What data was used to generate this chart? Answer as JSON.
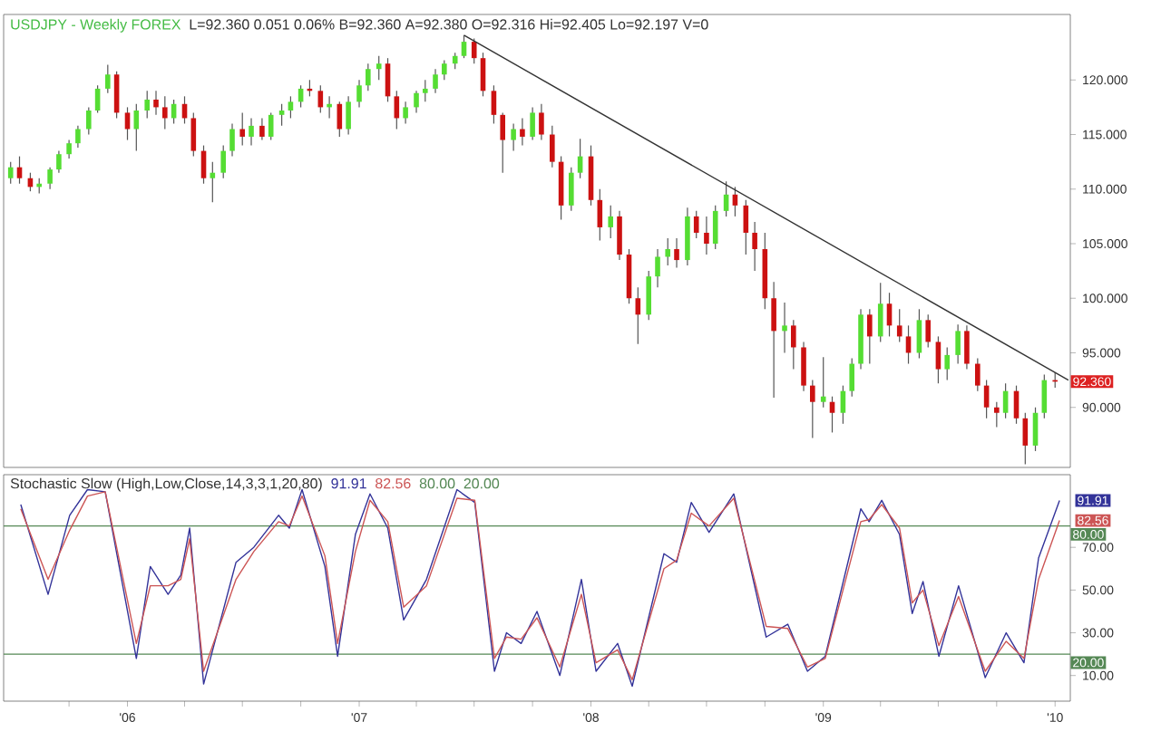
{
  "chart_data": [
    {
      "type": "candlestick",
      "title": "USDJPY - Weekly  FOREX",
      "subtitle": "L=92.360  0.051  0.06%  B=92.360  A=92.380  O=92.316  Hi=92.405  Lo=92.197  V=0",
      "x": [
        "2005-07-01",
        "2005-07-15",
        "2005-08-01",
        "2005-08-15",
        "2005-09-01",
        "2005-09-15",
        "2005-10-01",
        "2005-10-15",
        "2005-11-01",
        "2005-11-15",
        "2005-12-01",
        "2005-12-15",
        "2006-01-01",
        "2006-01-15",
        "2006-02-01",
        "2006-02-15",
        "2006-03-01",
        "2006-03-15",
        "2006-04-01",
        "2006-04-15",
        "2006-05-01",
        "2006-05-15",
        "2006-06-01",
        "2006-06-15",
        "2006-07-01",
        "2006-07-15",
        "2006-08-01",
        "2006-08-15",
        "2006-09-01",
        "2006-09-15",
        "2006-10-01",
        "2006-10-15",
        "2006-11-01",
        "2006-11-15",
        "2006-12-01",
        "2006-12-15",
        "2007-01-01",
        "2007-01-15",
        "2007-02-01",
        "2007-02-15",
        "2007-03-01",
        "2007-03-15",
        "2007-04-01",
        "2007-04-15",
        "2007-05-01",
        "2007-05-15",
        "2007-06-01",
        "2007-06-15",
        "2007-07-01",
        "2007-07-15",
        "2007-08-01",
        "2007-08-15",
        "2007-09-01",
        "2007-09-15",
        "2007-10-01",
        "2007-10-15",
        "2007-11-01",
        "2007-11-15",
        "2007-12-01",
        "2007-12-15",
        "2008-01-01",
        "2008-01-15",
        "2008-02-01",
        "2008-02-15",
        "2008-03-01",
        "2008-03-15",
        "2008-04-01",
        "2008-04-15",
        "2008-05-01",
        "2008-05-15",
        "2008-06-01",
        "2008-06-15",
        "2008-07-01",
        "2008-07-15",
        "2008-08-01",
        "2008-08-15",
        "2008-09-01",
        "2008-09-15",
        "2008-10-01",
        "2008-10-15",
        "2008-11-01",
        "2008-11-15",
        "2008-12-01",
        "2008-12-15",
        "2009-01-01",
        "2009-01-15",
        "2009-02-01",
        "2009-02-15",
        "2009-03-01",
        "2009-03-15",
        "2009-04-01",
        "2009-04-15",
        "2009-05-01",
        "2009-05-15",
        "2009-06-01",
        "2009-06-15",
        "2009-07-01",
        "2009-07-15",
        "2009-08-01",
        "2009-08-15",
        "2009-09-01",
        "2009-09-15",
        "2009-10-01",
        "2009-10-15",
        "2009-11-01",
        "2009-11-15",
        "2009-12-01",
        "2009-12-15",
        "2010-01-01"
      ],
      "ohlc": [
        [
          111.0,
          112.5,
          110.5,
          112.0
        ],
        [
          112.0,
          113.0,
          110.5,
          111.0
        ],
        [
          111.0,
          111.5,
          109.8,
          110.2
        ],
        [
          110.2,
          111.0,
          109.6,
          110.5
        ],
        [
          110.5,
          112.0,
          110.0,
          111.8
        ],
        [
          111.8,
          113.5,
          111.5,
          113.2
        ],
        [
          113.2,
          114.5,
          112.8,
          114.2
        ],
        [
          114.2,
          115.8,
          113.8,
          115.5
        ],
        [
          115.5,
          117.5,
          115.0,
          117.2
        ],
        [
          117.2,
          119.5,
          117.0,
          119.2
        ],
        [
          119.2,
          121.4,
          118.8,
          120.5
        ],
        [
          120.5,
          120.8,
          116.5,
          117.0
        ],
        [
          117.0,
          117.5,
          114.5,
          115.5
        ],
        [
          115.5,
          117.8,
          113.5,
          117.2
        ],
        [
          117.2,
          119.0,
          116.5,
          118.2
        ],
        [
          118.2,
          119.0,
          116.8,
          117.5
        ],
        [
          117.5,
          118.5,
          115.5,
          116.5
        ],
        [
          116.5,
          118.2,
          116.0,
          117.8
        ],
        [
          117.8,
          118.5,
          116.0,
          116.5
        ],
        [
          116.5,
          117.0,
          113.0,
          113.5
        ],
        [
          113.5,
          114.0,
          110.5,
          111.0
        ],
        [
          111.0,
          112.5,
          108.8,
          111.5
        ],
        [
          111.5,
          114.0,
          111.0,
          113.5
        ],
        [
          113.5,
          116.0,
          113.0,
          115.5
        ],
        [
          115.5,
          117.0,
          114.0,
          114.8
        ],
        [
          114.8,
          116.5,
          114.0,
          115.8
        ],
        [
          115.8,
          116.5,
          114.5,
          114.8
        ],
        [
          114.8,
          117.0,
          114.5,
          116.8
        ],
        [
          116.8,
          117.8,
          115.8,
          117.2
        ],
        [
          117.2,
          118.5,
          116.5,
          118.0
        ],
        [
          118.0,
          119.5,
          117.5,
          119.2
        ],
        [
          119.2,
          120.0,
          118.5,
          119.0
        ],
        [
          119.0,
          119.5,
          117.0,
          117.5
        ],
        [
          117.5,
          118.5,
          116.5,
          117.8
        ],
        [
          117.8,
          118.0,
          114.8,
          115.5
        ],
        [
          115.5,
          118.5,
          115.0,
          118.0
        ],
        [
          118.0,
          120.0,
          117.5,
          119.5
        ],
        [
          119.5,
          121.5,
          119.0,
          121.0
        ],
        [
          121.0,
          122.2,
          120.0,
          121.5
        ],
        [
          121.5,
          122.0,
          118.0,
          118.5
        ],
        [
          118.5,
          119.0,
          115.5,
          116.5
        ],
        [
          116.5,
          118.0,
          116.0,
          117.5
        ],
        [
          117.5,
          119.0,
          117.0,
          118.8
        ],
        [
          118.8,
          120.0,
          118.0,
          119.2
        ],
        [
          119.2,
          121.0,
          118.8,
          120.5
        ],
        [
          120.5,
          121.8,
          120.0,
          121.5
        ],
        [
          121.5,
          122.5,
          121.0,
          122.2
        ],
        [
          122.2,
          124.1,
          122.0,
          123.5
        ],
        [
          123.5,
          123.8,
          121.5,
          122.0
        ],
        [
          122.0,
          122.5,
          118.5,
          119.0
        ],
        [
          119.0,
          119.5,
          116.0,
          116.8
        ],
        [
          116.8,
          117.0,
          111.5,
          114.5
        ],
        [
          114.5,
          116.0,
          113.5,
          115.5
        ],
        [
          115.5,
          116.5,
          114.0,
          114.8
        ],
        [
          114.8,
          117.5,
          114.5,
          117.0
        ],
        [
          117.0,
          117.8,
          114.5,
          115.0
        ],
        [
          115.0,
          115.8,
          112.0,
          112.5
        ],
        [
          112.5,
          113.0,
          107.2,
          108.5
        ],
        [
          108.5,
          112.0,
          108.0,
          111.5
        ],
        [
          111.5,
          114.6,
          111.0,
          113.0
        ],
        [
          113.0,
          114.0,
          108.5,
          109.0
        ],
        [
          109.0,
          110.0,
          105.3,
          106.5
        ],
        [
          106.5,
          108.5,
          105.5,
          107.5
        ],
        [
          107.5,
          108.0,
          103.5,
          104.0
        ],
        [
          104.0,
          104.5,
          99.5,
          100.0
        ],
        [
          100.0,
          101.0,
          95.8,
          98.5
        ],
        [
          98.5,
          102.5,
          98.0,
          102.0
        ],
        [
          102.0,
          104.5,
          101.0,
          103.8
        ],
        [
          103.8,
          105.5,
          103.0,
          104.5
        ],
        [
          104.5,
          105.5,
          102.8,
          103.5
        ],
        [
          103.5,
          108.3,
          103.0,
          107.5
        ],
        [
          107.5,
          108.0,
          105.5,
          106.0
        ],
        [
          106.0,
          107.5,
          104.0,
          105.0
        ],
        [
          105.0,
          108.5,
          104.5,
          108.0
        ],
        [
          108.0,
          110.7,
          107.5,
          109.5
        ],
        [
          109.5,
          110.2,
          107.5,
          108.5
        ],
        [
          108.5,
          109.0,
          104.0,
          106.0
        ],
        [
          106.0,
          107.0,
          102.5,
          104.5
        ],
        [
          104.5,
          106.0,
          99.0,
          100.0
        ],
        [
          100.0,
          101.5,
          90.9,
          97.0
        ],
        [
          97.0,
          99.6,
          95.0,
          97.5
        ],
        [
          97.5,
          98.0,
          93.5,
          95.5
        ],
        [
          95.5,
          96.0,
          91.5,
          92.0
        ],
        [
          92.0,
          92.5,
          87.2,
          90.5
        ],
        [
          90.5,
          94.6,
          90.0,
          91.0
        ],
        [
          90.5,
          91.0,
          87.7,
          89.5
        ],
        [
          89.5,
          92.0,
          88.5,
          91.5
        ],
        [
          91.5,
          94.5,
          91.0,
          94.0
        ],
        [
          94.0,
          99.0,
          93.5,
          98.5
        ],
        [
          98.5,
          99.0,
          94.0,
          96.5
        ],
        [
          96.5,
          101.4,
          96.0,
          99.5
        ],
        [
          99.5,
          100.5,
          96.5,
          97.5
        ],
        [
          97.5,
          99.0,
          96.0,
          96.5
        ],
        [
          96.5,
          97.5,
          94.0,
          95.0
        ],
        [
          95.0,
          99.0,
          94.5,
          98.0
        ],
        [
          98.0,
          98.5,
          95.5,
          96.0
        ],
        [
          96.0,
          96.5,
          92.2,
          93.5
        ],
        [
          93.5,
          95.5,
          92.5,
          94.8
        ],
        [
          94.8,
          97.6,
          94.0,
          97.0
        ],
        [
          97.0,
          97.5,
          93.5,
          94.0
        ],
        [
          94.0,
          94.5,
          91.5,
          92.0
        ],
        [
          92.0,
          92.5,
          89.0,
          90.0
        ],
        [
          90.0,
          90.5,
          88.2,
          89.5
        ],
        [
          89.5,
          92.2,
          89.0,
          91.5
        ],
        [
          91.5,
          92.0,
          88.5,
          89.0
        ],
        [
          89.0,
          89.5,
          84.8,
          86.5
        ],
        [
          86.5,
          90.0,
          86.0,
          89.5
        ],
        [
          89.5,
          93.0,
          89.0,
          92.5
        ],
        [
          92.5,
          93.2,
          91.8,
          92.36
        ]
      ],
      "series": [
        {
          "type": "line",
          "x": [
            "2007-06-15",
            "2010-01-22"
          ],
          "values": [
            124.1,
            92.5
          ],
          "color": "#333333"
        }
      ],
      "xlim": [
        "2005-06-20",
        "2010-01-25"
      ],
      "ylim": [
        84.5,
        126
      ],
      "yticks": [
        {
          "value": 90,
          "label": "90.000"
        },
        {
          "value": 95,
          "label": "95.000"
        },
        {
          "value": 100,
          "label": "100.000"
        },
        {
          "value": 105,
          "label": "105.000"
        },
        {
          "value": 110,
          "label": "110.000"
        },
        {
          "value": 115,
          "label": "115.000"
        },
        {
          "value": 120,
          "label": "120.000"
        }
      ],
      "tick_labels": "y",
      "annotations": [
        {
          "text": "92.360",
          "x": "2010-01-01",
          "y": 92.36
        }
      ]
    },
    {
      "type": "line",
      "title": "Stochastic Slow (High,Low,Close,14,3,3,1,20,80)",
      "x": [
        "2005-07-17",
        "2005-08-29",
        "2005-10-02",
        "2005-10-30",
        "2005-11-27",
        "2006-01-15",
        "2006-02-06",
        "2006-03-06",
        "2006-03-26",
        "2006-04-09",
        "2006-05-01",
        "2006-06-21",
        "2006-07-19",
        "2006-08-27",
        "2006-09-13",
        "2006-10-03",
        "2006-11-08",
        "2006-11-28",
        "2006-12-26",
        "2007-01-18",
        "2007-02-15",
        "2007-03-12",
        "2007-04-17",
        "2007-06-04",
        "2007-07-02",
        "2007-08-02",
        "2007-08-21",
        "2007-09-13",
        "2007-10-08",
        "2007-11-13",
        "2007-12-17",
        "2008-01-09",
        "2008-02-12",
        "2008-03-06",
        "2008-04-25",
        "2008-05-15",
        "2008-06-07",
        "2008-07-05",
        "2008-08-13",
        "2008-10-03",
        "2008-11-06",
        "2008-12-07",
        "2009-01-04",
        "2009-03-01",
        "2009-03-14",
        "2009-04-03",
        "2009-05-01",
        "2009-05-21",
        "2009-06-07",
        "2009-07-02",
        "2009-08-02",
        "2009-09-13",
        "2009-10-16",
        "2009-11-13",
        "2009-12-06",
        "2010-01-08"
      ],
      "series": [
        {
          "color": "#333399",
          "values": [
            90,
            48,
            85,
            97,
            96,
            18,
            61,
            48,
            57,
            79,
            6,
            63,
            70,
            85,
            79,
            97,
            61,
            19,
            76,
            95,
            79,
            36,
            55,
            97,
            91,
            12,
            30,
            25,
            40,
            10,
            55,
            12,
            25,
            5,
            67,
            63,
            91,
            77,
            95,
            28,
            34,
            12,
            19,
            88,
            82,
            92,
            76,
            39,
            54,
            19,
            52,
            9,
            30,
            16,
            65,
            91.91
          ]
        },
        {
          "color": "#cc5555",
          "values": [
            88,
            55,
            78,
            94,
            96,
            25,
            52,
            52,
            55,
            74,
            12,
            55,
            68,
            82,
            80,
            94,
            66,
            25,
            68,
            92,
            82,
            42,
            52,
            93,
            92,
            18,
            28,
            27,
            37,
            14,
            48,
            16,
            22,
            8,
            60,
            64,
            86,
            80,
            93,
            33,
            32,
            14,
            18,
            82,
            83,
            90,
            79,
            44,
            50,
            24,
            47,
            12,
            26,
            18,
            55,
            82.56
          ]
        }
      ],
      "xlim": [
        "2005-06-20",
        "2010-01-25"
      ],
      "ylim": [
        -2,
        104
      ],
      "xticks": [
        {
          "value": "2005-10-01",
          "label": null
        },
        {
          "value": "2006-01-01",
          "label": "'06"
        },
        {
          "value": "2006-04-01",
          "label": null
        },
        {
          "value": "2006-07-01",
          "label": null
        },
        {
          "value": "2006-10-01",
          "label": null
        },
        {
          "value": "2007-01-01",
          "label": "'07"
        },
        {
          "value": "2007-04-01",
          "label": null
        },
        {
          "value": "2007-07-01",
          "label": null
        },
        {
          "value": "2007-10-01",
          "label": null
        },
        {
          "value": "2008-01-01",
          "label": "'08"
        },
        {
          "value": "2008-04-01",
          "label": null
        },
        {
          "value": "2008-07-01",
          "label": null
        },
        {
          "value": "2008-10-01",
          "label": null
        },
        {
          "value": "2009-01-01",
          "label": "'09"
        },
        {
          "value": "2009-04-01",
          "label": null
        },
        {
          "value": "2009-07-01",
          "label": null
        },
        {
          "value": "2009-10-01",
          "label": null
        },
        {
          "value": "2010-01-01",
          "label": "'10"
        }
      ],
      "yticks": [
        {
          "value": 10,
          "label": "10.00"
        },
        {
          "value": 30,
          "label": "30.00"
        },
        {
          "value": 50,
          "label": "50.00"
        },
        {
          "value": 70,
          "label": "70.00"
        }
      ],
      "ref_lines": [
        {
          "axis": "y",
          "value": 80,
          "label": "80.00",
          "color": "#558855"
        },
        {
          "axis": "y",
          "value": 20,
          "label": "20.00",
          "color": "#558855"
        }
      ],
      "annotations": [
        "91.91",
        "82.56",
        "80.00",
        "20.00",
        {
          "text": "91.91",
          "x": "2010-01-08",
          "y": 91.91
        },
        {
          "text": "82.56",
          "x": "2010-01-08",
          "y": 82.56
        }
      ]
    }
  ]
}
